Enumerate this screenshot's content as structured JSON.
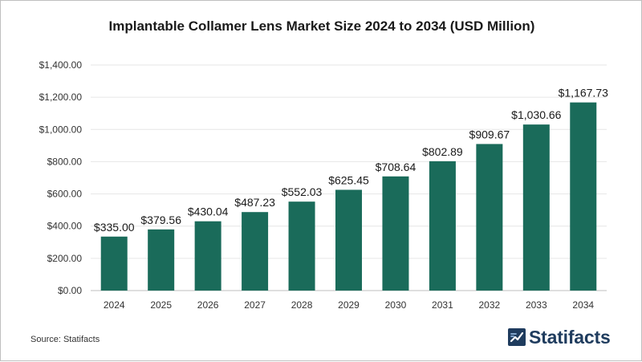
{
  "chart_data": {
    "type": "bar",
    "title": "Implantable Collamer Lens Market Size 2024 to 2034 (USD Million)",
    "xlabel": "",
    "ylabel": "",
    "categories": [
      "2024",
      "2025",
      "2026",
      "2027",
      "2028",
      "2029",
      "2030",
      "2031",
      "2032",
      "2033",
      "2034"
    ],
    "values": [
      335.0,
      379.56,
      430.04,
      487.23,
      552.03,
      625.45,
      708.64,
      802.89,
      909.67,
      1030.66,
      1167.73
    ],
    "data_labels": [
      "$335.00",
      "$379.56",
      "$430.04",
      "$487.23",
      "$552.03",
      "$625.45",
      "$708.64",
      "$802.89",
      "$909.67",
      "$1,030.66",
      "$1,167.73"
    ],
    "ylim": [
      0,
      1400
    ],
    "yticks": [
      0,
      200,
      400,
      600,
      800,
      1000,
      1200,
      1400
    ],
    "ytick_labels": [
      "$0.00",
      "$200.00",
      "$400.00",
      "$600.00",
      "$800.00",
      "$1,000.00",
      "$1,200.00",
      "$1,400.00"
    ],
    "grid": true,
    "bar_color": "#1a6b5a",
    "legend": "none"
  },
  "source": "Source: Statifacts",
  "brand": {
    "name": "Statifacts",
    "color": "#1f3c5e",
    "icon": "statifacts-logo-icon"
  }
}
